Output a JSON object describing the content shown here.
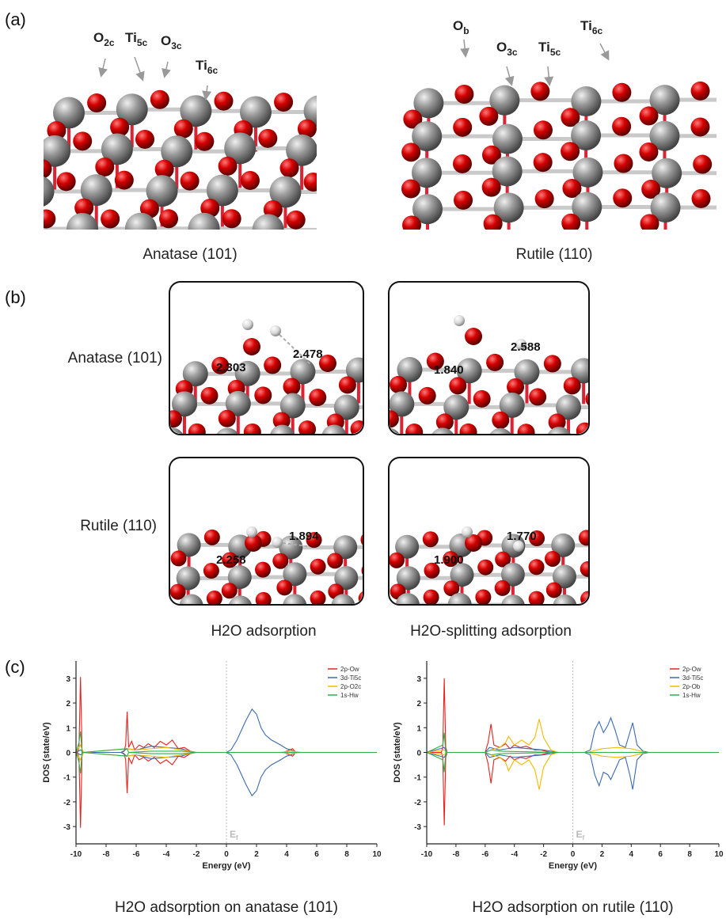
{
  "panel_labels": [
    "(a)",
    "(b)",
    "(c)"
  ],
  "panel_a": {
    "anatase_caption": "Anatase (101)",
    "rutile_caption": "Rutile (110)",
    "anatase_labels": [
      {
        "base": "O",
        "sub": "2c"
      },
      {
        "base": "Ti",
        "sub": "5c"
      },
      {
        "base": "O",
        "sub": "3c"
      },
      {
        "base": "Ti",
        "sub": "6c"
      }
    ],
    "rutile_labels": [
      {
        "base": "O",
        "sub": "b"
      },
      {
        "base": "O",
        "sub": "3c"
      },
      {
        "base": "Ti",
        "sub": "5c"
      },
      {
        "base": "Ti",
        "sub": "6c"
      }
    ]
  },
  "panel_b": {
    "row_labels": [
      "Anatase (101)",
      "Rutile (110)"
    ],
    "column_labels": [
      "H2O adsorption",
      "H2O-splitting adsorption"
    ],
    "bond_lengths": [
      [
        "2.303",
        "2.478"
      ],
      [
        "1.840",
        "2.588"
      ],
      [
        "2.258",
        "1.894"
      ],
      [
        "1.900",
        "1.770"
      ]
    ]
  },
  "chart_data": [
    {
      "type": "line",
      "title": "H2O adsorption on anatase (101)",
      "xlabel": "Energy (eV)",
      "ylabel": "DOS (state/eV)",
      "xlim": [
        -10,
        10
      ],
      "ylim": [
        -3.7,
        3.7
      ],
      "xticks": [
        -10,
        -8,
        -6,
        -4,
        -2,
        0,
        2,
        4,
        6,
        8,
        10
      ],
      "yticks": [
        -3,
        -2,
        -1,
        0,
        1,
        2,
        3
      ],
      "fermi_level": 0,
      "fermi_label": {
        "base": "E",
        "sub": "f"
      },
      "legend": "upper right",
      "series": [
        {
          "name": "2p-Ow",
          "color": "#e8211d",
          "x": [
            -10,
            -9.9,
            -9.8,
            -9.7,
            -9.6,
            -9.5,
            -7,
            -6.8,
            -6.7,
            -6.6,
            -6.5,
            -6.3,
            -6.1,
            -5.8,
            -5.5,
            -5.2,
            -4.8,
            -4.4,
            -4,
            -3.6,
            -3.2,
            -2.8,
            -2.4,
            -2,
            3.8,
            4.2,
            4.4,
            4.6,
            5,
            10
          ],
          "values": [
            0,
            0,
            0.2,
            3.05,
            0.1,
            0,
            0,
            0.05,
            0.3,
            1.65,
            0.2,
            0.45,
            0.1,
            0.3,
            0.2,
            0.35,
            0.2,
            0.45,
            0.3,
            0.5,
            0.15,
            0.2,
            0.05,
            0,
            0,
            0.1,
            0.15,
            0,
            0,
            0
          ],
          "values_down": [
            0,
            0,
            -0.2,
            -3.05,
            -0.1,
            0,
            0,
            -0.05,
            -0.3,
            -1.65,
            -0.2,
            -0.45,
            -0.1,
            -0.3,
            -0.2,
            -0.35,
            -0.2,
            -0.45,
            -0.3,
            -0.5,
            -0.15,
            -0.2,
            -0.05,
            0,
            0,
            -0.1,
            -0.15,
            0,
            0,
            0
          ]
        },
        {
          "name": "3d-Ti5c",
          "color": "#3a6ab0",
          "x": [
            -10,
            -9.7,
            -9.5,
            -7,
            -6.6,
            -6,
            -5,
            -4,
            -3,
            -2.2,
            -1.5,
            0,
            0.3,
            0.7,
            1,
            1.3,
            1.7,
            2,
            2.3,
            2.6,
            3,
            3.3,
            3.6,
            4,
            4.3,
            4.6,
            5,
            10
          ],
          "values": [
            0,
            0.1,
            0,
            0,
            0.15,
            0.1,
            0.25,
            0.2,
            0.15,
            0,
            0,
            0,
            0.1,
            0.5,
            0.9,
            1.3,
            1.75,
            1.55,
            1,
            0.7,
            0.5,
            0.4,
            0.3,
            0.15,
            0.1,
            0,
            0,
            0
          ],
          "values_down": [
            0,
            -0.1,
            0,
            0,
            -0.15,
            -0.1,
            -0.25,
            -0.2,
            -0.15,
            0,
            0,
            0,
            -0.1,
            -0.5,
            -0.9,
            -1.3,
            -1.75,
            -1.55,
            -1,
            -0.7,
            -0.5,
            -0.4,
            -0.3,
            -0.15,
            -0.1,
            0,
            0,
            0
          ]
        },
        {
          "name": "2p-O2c",
          "color": "#f5b800",
          "x": [
            -10,
            -9.7,
            -9.5,
            -6.6,
            -6,
            -4,
            -2.5,
            -2,
            3.5,
            4.3,
            5,
            10
          ],
          "values": [
            0,
            0.3,
            0,
            0.15,
            0.1,
            0.2,
            0.05,
            0,
            0,
            0.05,
            0,
            0
          ],
          "values_down": [
            0,
            -0.3,
            0,
            -0.15,
            -0.1,
            -0.2,
            -0.05,
            0,
            0,
            -0.05,
            0,
            0
          ]
        },
        {
          "name": "1s-Hw",
          "color": "#2fb14a",
          "x": [
            -10,
            -9.8,
            -9.7,
            -9.6,
            -6.6,
            -6.5,
            -5,
            -3,
            -2,
            10
          ],
          "values": [
            0,
            0.4,
            0.85,
            0,
            0.15,
            0,
            0.05,
            0.05,
            0,
            0
          ],
          "values_down": [
            0,
            -0.4,
            -0.85,
            0,
            -0.15,
            0,
            -0.05,
            -0.05,
            0,
            0
          ]
        }
      ]
    },
    {
      "type": "line",
      "title": "H2O adsorption on rutile (110)",
      "xlabel": "Energy (eV)",
      "ylabel": "DOS (state/eV)",
      "xlim": [
        -10,
        10
      ],
      "ylim": [
        -3.7,
        3.7
      ],
      "xticks": [
        -10,
        -8,
        -6,
        -4,
        -2,
        0,
        2,
        4,
        6,
        8,
        10
      ],
      "yticks": [
        -3,
        -2,
        -1,
        0,
        1,
        2,
        3
      ],
      "fermi_level": 0,
      "fermi_label": {
        "base": "E",
        "sub": "f"
      },
      "legend": "upper right",
      "series": [
        {
          "name": "2p-Ow",
          "color": "#e8211d",
          "x": [
            -10,
            -9,
            -8.9,
            -8.8,
            -8.7,
            -8.6,
            -6,
            -5.8,
            -5.6,
            -5.4,
            -5,
            -4.6,
            -4.3,
            -4,
            -3.6,
            -3.2,
            -2.6,
            -2.2,
            -1.5,
            -1,
            10
          ],
          "values": [
            0,
            0,
            0.2,
            3,
            0.2,
            0,
            0,
            0.4,
            1.15,
            0.3,
            0.2,
            0.35,
            0.15,
            0.3,
            0.2,
            0.25,
            0.1,
            0.1,
            0,
            0,
            0
          ],
          "values_down": [
            0,
            0,
            -0.2,
            -2.95,
            -0.2,
            0,
            0,
            -0.45,
            -1.25,
            -0.3,
            -0.2,
            -0.35,
            -0.15,
            -0.3,
            -0.2,
            -0.25,
            -0.1,
            -0.1,
            0,
            0,
            0
          ]
        },
        {
          "name": "3d-Ti5c",
          "color": "#3a6ab0",
          "x": [
            -10,
            -8.8,
            -8.6,
            -6,
            -5.7,
            -5,
            -4,
            -3,
            -2,
            -1,
            0.8,
            1.2,
            1.5,
            1.8,
            2.1,
            2.4,
            2.6,
            2.9,
            3.2,
            3.6,
            3.9,
            4.1,
            4.4,
            4.8,
            5.2,
            10
          ],
          "values": [
            0,
            0.2,
            0,
            0,
            0.2,
            0.1,
            0.2,
            0.15,
            0.1,
            0,
            0,
            0.1,
            0.9,
            1.25,
            0.8,
            1.1,
            1.4,
            0.9,
            0.3,
            0.2,
            0.8,
            1.2,
            0.3,
            0.05,
            0,
            0
          ],
          "values_down": [
            0,
            -0.2,
            0,
            0,
            -0.2,
            -0.1,
            -0.2,
            -0.15,
            -0.1,
            0,
            0,
            -0.1,
            -0.9,
            -1.35,
            -0.8,
            -0.9,
            -1.1,
            -0.7,
            -0.3,
            -0.2,
            -0.9,
            -1.5,
            -0.3,
            -0.05,
            0,
            0
          ]
        },
        {
          "name": "2p-Ob",
          "color": "#f5b800",
          "x": [
            -10,
            -8.8,
            -8.6,
            -6,
            -5.6,
            -5,
            -4.6,
            -4.4,
            -4,
            -3.5,
            -3,
            -2.6,
            -2.3,
            -2,
            -1.5,
            -1,
            1,
            2,
            3,
            4,
            5,
            10
          ],
          "values": [
            0,
            0.1,
            0,
            0,
            0.1,
            0.2,
            0.4,
            0.65,
            0.3,
            0.5,
            0.3,
            0.6,
            1.35,
            0.6,
            0.1,
            0,
            0,
            0.15,
            0.2,
            0.15,
            0,
            0
          ],
          "values_down": [
            0,
            -0.1,
            0,
            0,
            -0.1,
            -0.2,
            -0.4,
            -0.75,
            -0.3,
            -0.5,
            -0.3,
            -0.7,
            -1.5,
            -0.6,
            -0.1,
            0,
            0,
            -0.15,
            -0.2,
            -0.15,
            0,
            0
          ]
        },
        {
          "name": "1s-Hw",
          "color": "#2fb14a",
          "x": [
            -10,
            -8.9,
            -8.8,
            -8.7,
            -6,
            -5.6,
            -5,
            -1,
            10
          ],
          "values": [
            0,
            0.3,
            0.8,
            0,
            0,
            0.1,
            0.05,
            0,
            0
          ],
          "values_down": [
            0,
            -0.3,
            -0.8,
            0,
            0,
            -0.1,
            -0.05,
            0,
            0
          ]
        }
      ]
    }
  ]
}
